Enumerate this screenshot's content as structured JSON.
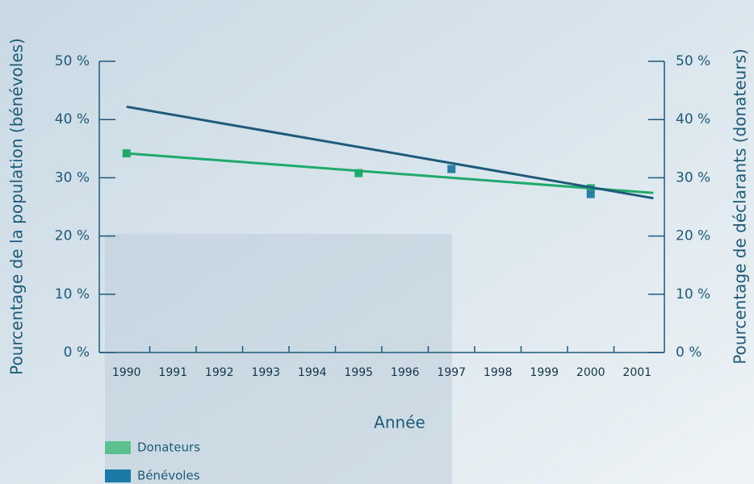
{
  "chart_data": {
    "type": "line",
    "x_label": "Année",
    "y_label": "Pourcentage de la population (bénévoles)",
    "y2_label": "Pourcentage de déclarants (donateurs)",
    "categories": [
      "1990",
      "1991",
      "1992",
      "1993",
      "1994",
      "1995",
      "1996",
      "1997",
      "1998",
      "1999",
      "2000",
      "2001"
    ],
    "ylim": [
      0,
      50
    ],
    "yticks": [
      {
        "value": 0,
        "label": "0 %"
      },
      {
        "value": 10,
        "label": "10 %"
      },
      {
        "value": 20,
        "label": "20 %"
      },
      {
        "value": 30,
        "label": "30 %"
      },
      {
        "value": 40,
        "label": "40 %"
      },
      {
        "value": 50,
        "label": "50 %"
      }
    ],
    "y2lim": [
      0,
      50
    ],
    "y2ticks": [
      {
        "value": 0,
        "label": "0 %"
      },
      {
        "value": 10,
        "label": "10 %"
      },
      {
        "value": 20,
        "label": "20 %"
      },
      {
        "value": 30,
        "label": "30 %"
      },
      {
        "value": 40,
        "label": "40 %"
      },
      {
        "value": 50,
        "label": "50 %"
      }
    ],
    "legend": "bottom-left",
    "series": [
      {
        "name": "Donateurs",
        "color": "#1fa96a",
        "legend_color": "#5cc08f",
        "axis": "y2",
        "values": [
          34.2,
          null,
          null,
          null,
          null,
          30.8,
          null,
          null,
          null,
          null,
          28.2,
          null
        ],
        "trend": [
          34.2,
          27.4
        ]
      },
      {
        "name": "Bénévoles",
        "color": "#1e5a7a",
        "legend_color": "#1a7aa8",
        "values": [
          null,
          null,
          null,
          null,
          null,
          null,
          null,
          31.5,
          null,
          null,
          27.2,
          null
        ],
        "trend": [
          42.2,
          26.5
        ]
      }
    ]
  }
}
